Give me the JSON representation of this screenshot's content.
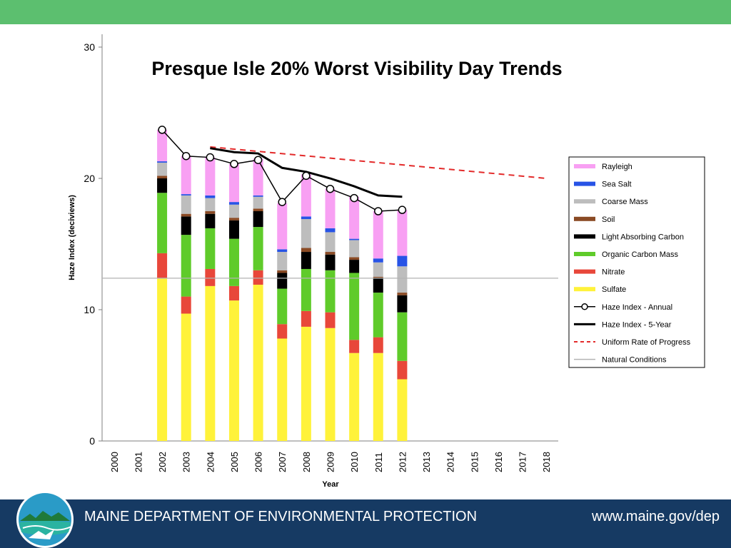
{
  "colors": {
    "header_bar": "#5cbf6f",
    "footer_bar": "#163a63",
    "Sulfate": "#fff23a",
    "Nitrate": "#e8473a",
    "Organic Carbon Mass": "#5fcb2a",
    "Light Absorbing Carbon": "#000000",
    "Soil": "#8a4a24",
    "Coarse Mass": "#bdbdbd",
    "Sea Salt": "#2753e6",
    "Rayleigh": "#f8a0f3",
    "annual_line": "#000000",
    "five_year_line": "#000000",
    "uniform_rate": "#e32a2a",
    "natural_conditions": "#b3b3b3"
  },
  "footer": {
    "org_name": "MAINE DEPARTMENT OF ENVIRONMENTAL PROTECTION",
    "url": "www.maine.gov/dep",
    "logo_icon": "maine-dep-logo"
  },
  "chart_data": {
    "type": "bar",
    "stacked": true,
    "title": "Presque Isle 20% Worst Visibility Day Trends",
    "xlabel": "Year",
    "ylabel": "Haze Index (deciviews)",
    "ylim": [
      0,
      31
    ],
    "yticks": [
      0,
      10,
      20,
      30
    ],
    "grid": false,
    "legend_position": "right",
    "categories": [
      "2000",
      "2001",
      "2002",
      "2003",
      "2004",
      "2005",
      "2006",
      "2007",
      "2008",
      "2009",
      "2010",
      "2011",
      "2012",
      "2013",
      "2014",
      "2015",
      "2016",
      "2017",
      "2018"
    ],
    "series": [
      {
        "name": "Sulfate",
        "values": [
          null,
          null,
          12.4,
          9.7,
          11.8,
          10.7,
          11.9,
          7.8,
          8.7,
          8.6,
          6.7,
          6.7,
          4.7,
          null,
          null,
          null,
          null,
          null,
          null
        ]
      },
      {
        "name": "Nitrate",
        "values": [
          null,
          null,
          1.9,
          1.3,
          1.3,
          1.1,
          1.1,
          1.1,
          1.2,
          1.2,
          1.0,
          1.2,
          1.4,
          null,
          null,
          null,
          null,
          null,
          null
        ]
      },
      {
        "name": "Organic Carbon Mass",
        "values": [
          null,
          null,
          4.6,
          4.7,
          3.1,
          3.6,
          3.3,
          2.7,
          3.2,
          3.2,
          5.1,
          3.4,
          3.7,
          null,
          null,
          null,
          null,
          null,
          null
        ]
      },
      {
        "name": "Light Absorbing Carbon",
        "values": [
          null,
          null,
          1.1,
          1.4,
          1.1,
          1.4,
          1.2,
          1.2,
          1.3,
          1.2,
          1.0,
          1.1,
          1.3,
          null,
          null,
          null,
          null,
          null,
          null
        ]
      },
      {
        "name": "Soil",
        "values": [
          null,
          null,
          0.2,
          0.2,
          0.2,
          0.2,
          0.2,
          0.2,
          0.3,
          0.2,
          0.2,
          0.1,
          0.2,
          null,
          null,
          null,
          null,
          null,
          null
        ]
      },
      {
        "name": "Coarse Mass",
        "values": [
          null,
          null,
          1.0,
          1.4,
          1.0,
          1.0,
          0.9,
          1.4,
          2.2,
          1.5,
          1.3,
          1.1,
          2.0,
          null,
          null,
          null,
          null,
          null,
          null
        ]
      },
      {
        "name": "Sea Salt",
        "values": [
          null,
          null,
          0.1,
          0.1,
          0.2,
          0.2,
          0.1,
          0.2,
          0.2,
          0.3,
          0.1,
          0.3,
          0.8,
          null,
          null,
          null,
          null,
          null,
          null
        ]
      },
      {
        "name": "Rayleigh",
        "values": [
          null,
          null,
          2.4,
          2.9,
          2.9,
          2.9,
          2.8,
          3.5,
          3.2,
          3.0,
          3.2,
          3.6,
          3.5,
          null,
          null,
          null,
          null,
          null,
          null
        ]
      }
    ],
    "lines": [
      {
        "name": "Haze Index - Annual",
        "style": "line-with-circle-markers",
        "values": [
          null,
          null,
          23.7,
          21.7,
          21.6,
          21.1,
          21.4,
          18.2,
          20.2,
          19.2,
          18.5,
          17.5,
          17.6,
          null,
          null,
          null,
          null,
          null,
          null
        ]
      },
      {
        "name": "Haze Index - 5-Year",
        "style": "thick-line",
        "values": [
          null,
          null,
          null,
          null,
          22.3,
          22.0,
          21.9,
          20.8,
          20.5,
          20.0,
          19.4,
          18.7,
          18.6,
          null,
          null,
          null,
          null,
          null,
          null
        ]
      },
      {
        "name": "Uniform Rate of Progress",
        "style": "dashed",
        "points": [
          [
            2004,
            22.4
          ],
          [
            2018,
            20.0
          ]
        ]
      },
      {
        "name": "Natural Conditions",
        "style": "thin-line",
        "value": 12.4
      }
    ],
    "legend": [
      "Rayleigh",
      "Sea Salt",
      "Coarse Mass",
      "Soil",
      "Light Absorbing Carbon",
      "Organic Carbon Mass",
      "Nitrate",
      "Sulfate",
      "Haze Index - Annual",
      "Haze Index - 5-Year",
      "Uniform Rate of Progress",
      "Natural Conditions"
    ]
  }
}
